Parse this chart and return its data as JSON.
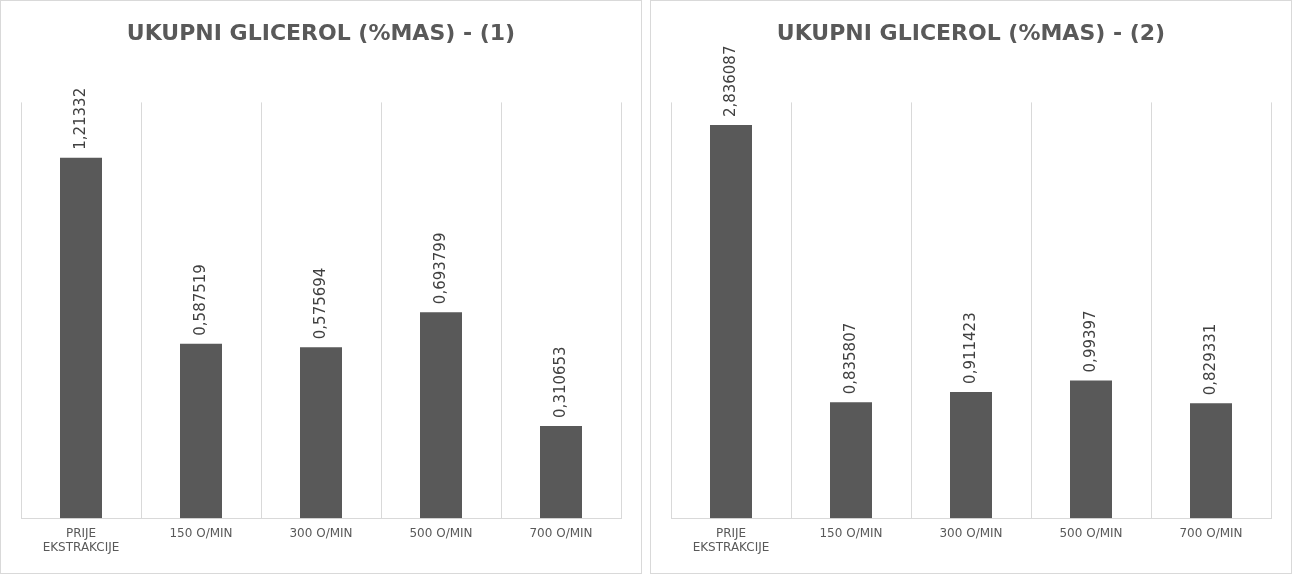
{
  "chart_data": [
    {
      "type": "bar",
      "title": "UKUPNI GLICEROL (%MAS) - (1)",
      "categories": [
        "PRIJE EKSTRAKCIJE",
        "150 O/MIN",
        "300 O/MIN",
        "500 O/MIN",
        "700 O/MIN"
      ],
      "values": [
        1.21332,
        0.587519,
        0.575694,
        0.693799,
        0.310653
      ],
      "value_labels": [
        "1,21332",
        "0,587519",
        "0,575694",
        "0,693799",
        "0,310653"
      ],
      "color": "#595959",
      "grid": "x",
      "legend": false,
      "tick_labels": "x"
    },
    {
      "type": "bar",
      "title": "UKUPNI GLICEROL (%MAS) - (2)",
      "categories": [
        "PRIJE EKSTRAKCIJE",
        "150 O/MIN",
        "300 O/MIN",
        "500 O/MIN",
        "700 O/MIN"
      ],
      "values": [
        2.836087,
        0.835807,
        0.911423,
        0.99397,
        0.829331
      ],
      "value_labels": [
        "2,836087",
        "0,835807",
        "0,911423",
        "0,99397",
        "0,829331"
      ],
      "color": "#595959",
      "grid": "x",
      "legend": false,
      "tick_labels": "x"
    }
  ]
}
